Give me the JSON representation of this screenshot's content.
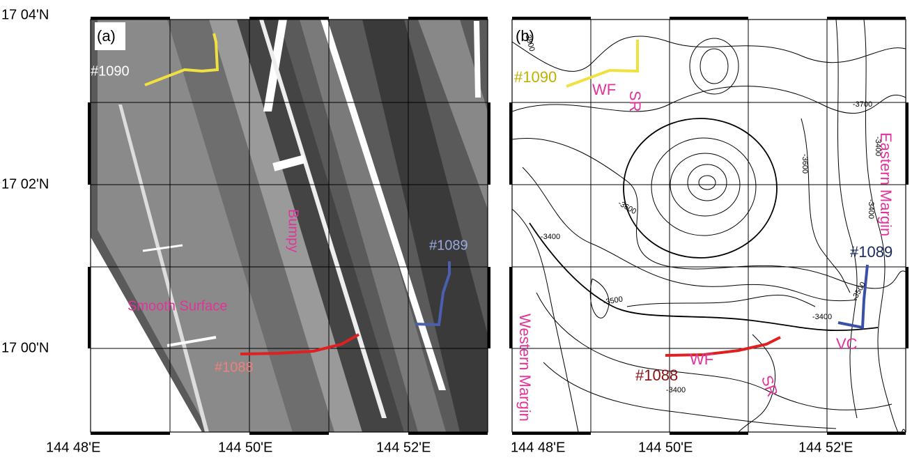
{
  "axes": {
    "y_labels": [
      "17 04'N",
      "17 02'N",
      "17 00'N"
    ],
    "x_labels": [
      "144 48'E",
      "144 50'E",
      "144 52'E",
      "144 48'E",
      "144 50'E",
      "144 52'E"
    ]
  },
  "panels": [
    {
      "label": "(a)",
      "annotations": [
        "#1090",
        "Bumpy",
        "#1089",
        "Smooth Surface",
        "#1088"
      ]
    },
    {
      "label": "(b)",
      "annotations": [
        "#1090",
        "WF",
        "SR",
        "Eastern Margin",
        "#1089",
        "Western Margin",
        "WF",
        "#1088",
        "SR",
        "VC",
        "-3800",
        "-3700",
        "-3600",
        "-3600",
        "-3500",
        "-3400",
        "-3400",
        "-3400",
        "-3400",
        "-3500",
        "-3400"
      ]
    }
  ]
}
